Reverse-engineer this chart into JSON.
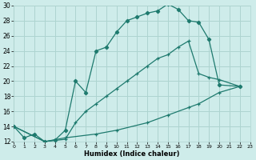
{
  "xlabel": "Humidex (Indice chaleur)",
  "background_color": "#ceecea",
  "grid_color": "#aed4d0",
  "line_color": "#1e7a6e",
  "xlim": [
    0,
    23
  ],
  "ylim": [
    12,
    30
  ],
  "xticks": [
    0,
    1,
    2,
    3,
    4,
    5,
    6,
    7,
    8,
    9,
    10,
    11,
    12,
    13,
    14,
    15,
    16,
    17,
    18,
    19,
    20,
    21,
    22,
    23
  ],
  "yticks": [
    12,
    14,
    16,
    18,
    20,
    22,
    24,
    26,
    28,
    30
  ],
  "curve1_x": [
    0,
    1,
    2,
    3,
    4,
    5,
    6,
    7,
    8,
    9,
    10,
    11,
    12,
    13,
    14,
    15,
    16,
    17,
    18,
    19,
    20,
    22
  ],
  "curve1_y": [
    14,
    12.5,
    13,
    12,
    12.2,
    13.5,
    20,
    18.5,
    24,
    24.5,
    26.5,
    28,
    28.5,
    29,
    29.3,
    30.2,
    29.5,
    28,
    27.8,
    25.5,
    19.5,
    19.3
  ],
  "curve2_x": [
    0,
    3,
    5,
    6,
    7,
    8,
    9,
    10,
    11,
    12,
    13,
    14,
    15,
    16,
    17,
    18,
    19,
    20,
    22
  ],
  "curve2_y": [
    14,
    12,
    12.3,
    14.5,
    16,
    17,
    18,
    19,
    20,
    21,
    22,
    23,
    23.5,
    24.5,
    25.3,
    21,
    20.5,
    20.2,
    19.3
  ],
  "curve3_x": [
    0,
    3,
    5,
    8,
    10,
    13,
    15,
    17,
    18,
    20,
    22
  ],
  "curve3_y": [
    14,
    12,
    12.5,
    13,
    13.5,
    14.5,
    15.5,
    16.5,
    17.0,
    18.5,
    19.3
  ]
}
